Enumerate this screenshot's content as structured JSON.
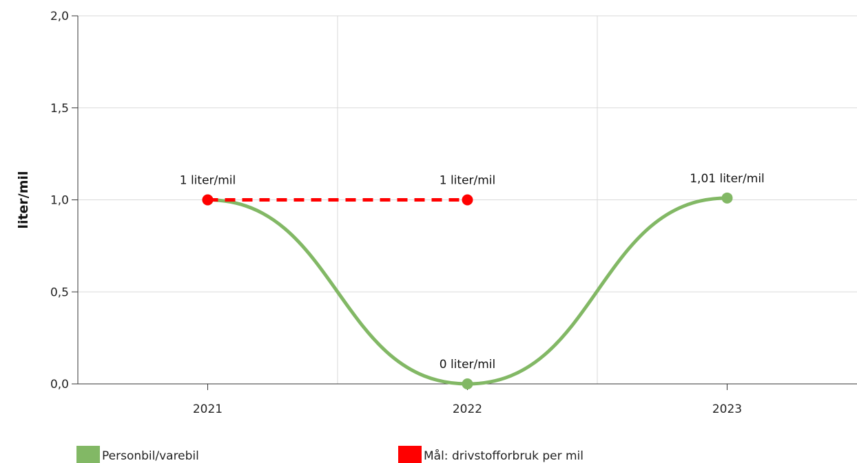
{
  "chart_data": {
    "type": "line",
    "x": [
      "2021",
      "2022",
      "2023"
    ],
    "ylabel": "liter/mil",
    "ylim": [
      0,
      2
    ],
    "yticks": [
      "0,0",
      "0,5",
      "1,0",
      "1,5",
      "2,0"
    ],
    "ytick_values": [
      0,
      0.5,
      1,
      1.5,
      2
    ],
    "grid": true,
    "legend_position": "bottom",
    "series": [
      {
        "name": "Personbil/varebil",
        "color": "#82b865",
        "style": "smooth-solid",
        "values": [
          1,
          0,
          1.01
        ],
        "labels": [
          "",
          "0 liter/mil",
          "1,01 liter/mil"
        ]
      },
      {
        "name": "Mål: drivstofforbruk per mil",
        "color": "#ff0000",
        "style": "dashed",
        "values": [
          1,
          1,
          null
        ],
        "labels": [
          "1 liter/mil",
          "1 liter/mil",
          ""
        ]
      }
    ]
  }
}
